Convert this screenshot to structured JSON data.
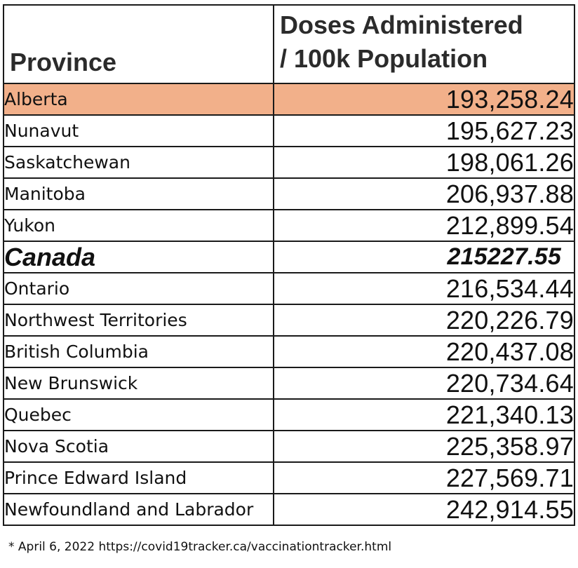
{
  "table": {
    "headers": {
      "province": "Province",
      "doses_line1": "Doses Administered",
      "doses_line2": "/ 100k Population"
    },
    "highlight_color": "#f2b08a",
    "rows": [
      {
        "province": "Alberta",
        "doses": "193,258.24",
        "highlighted": true
      },
      {
        "province": "Nunavut",
        "doses": "195,627.23"
      },
      {
        "province": "Saskatchewan",
        "doses": "198,061.26"
      },
      {
        "province": "Manitoba",
        "doses": "206,937.88"
      },
      {
        "province": "Yukon",
        "doses": "212,899.54"
      },
      {
        "province": "Canada",
        "doses": "215227.55",
        "total": true
      },
      {
        "province": "Ontario",
        "doses": "216,534.44"
      },
      {
        "province": "Northwest Territories",
        "doses": "220,226.79"
      },
      {
        "province": "British Columbia",
        "doses": "220,437.08"
      },
      {
        "province": "New Brunswick",
        "doses": "220,734.64"
      },
      {
        "province": "Quebec",
        "doses": "221,340.13"
      },
      {
        "province": "Nova Scotia",
        "doses": "225,358.97"
      },
      {
        "province": "Prince Edward Island",
        "doses": "227,569.71"
      },
      {
        "province": "Newfoundland and Labrador",
        "doses": "242,914.55"
      }
    ]
  },
  "footnote": "* April 6, 2022 https://covid19tracker.ca/vaccinationtracker.html"
}
